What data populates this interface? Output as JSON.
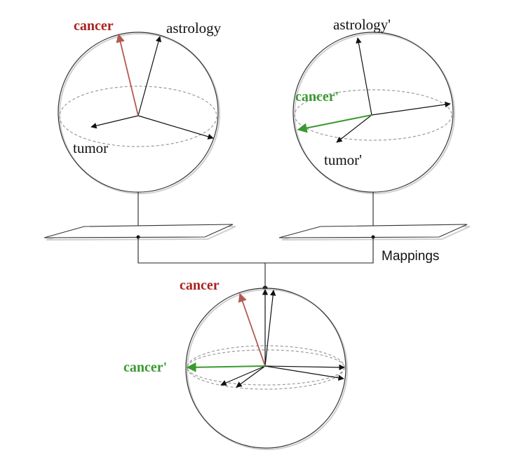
{
  "colors": {
    "red": "#b25a52",
    "red_text": "#a82320",
    "green": "#3b9a2f",
    "green_text": "#3a9a30",
    "ink": "#111111",
    "dash": "#9a9a9a"
  },
  "left_sphere": {
    "label_cancer": "cancer",
    "label_astrology": "astrology",
    "label_tumor": "tumor"
  },
  "right_sphere": {
    "label_cancer": "cancer'",
    "label_astrology": "astrology'",
    "label_tumor": "tumor'"
  },
  "mappings_label": "Mappings",
  "bottom_sphere": {
    "label_cancer": "cancer",
    "label_cancer_prime": "cancer'"
  }
}
